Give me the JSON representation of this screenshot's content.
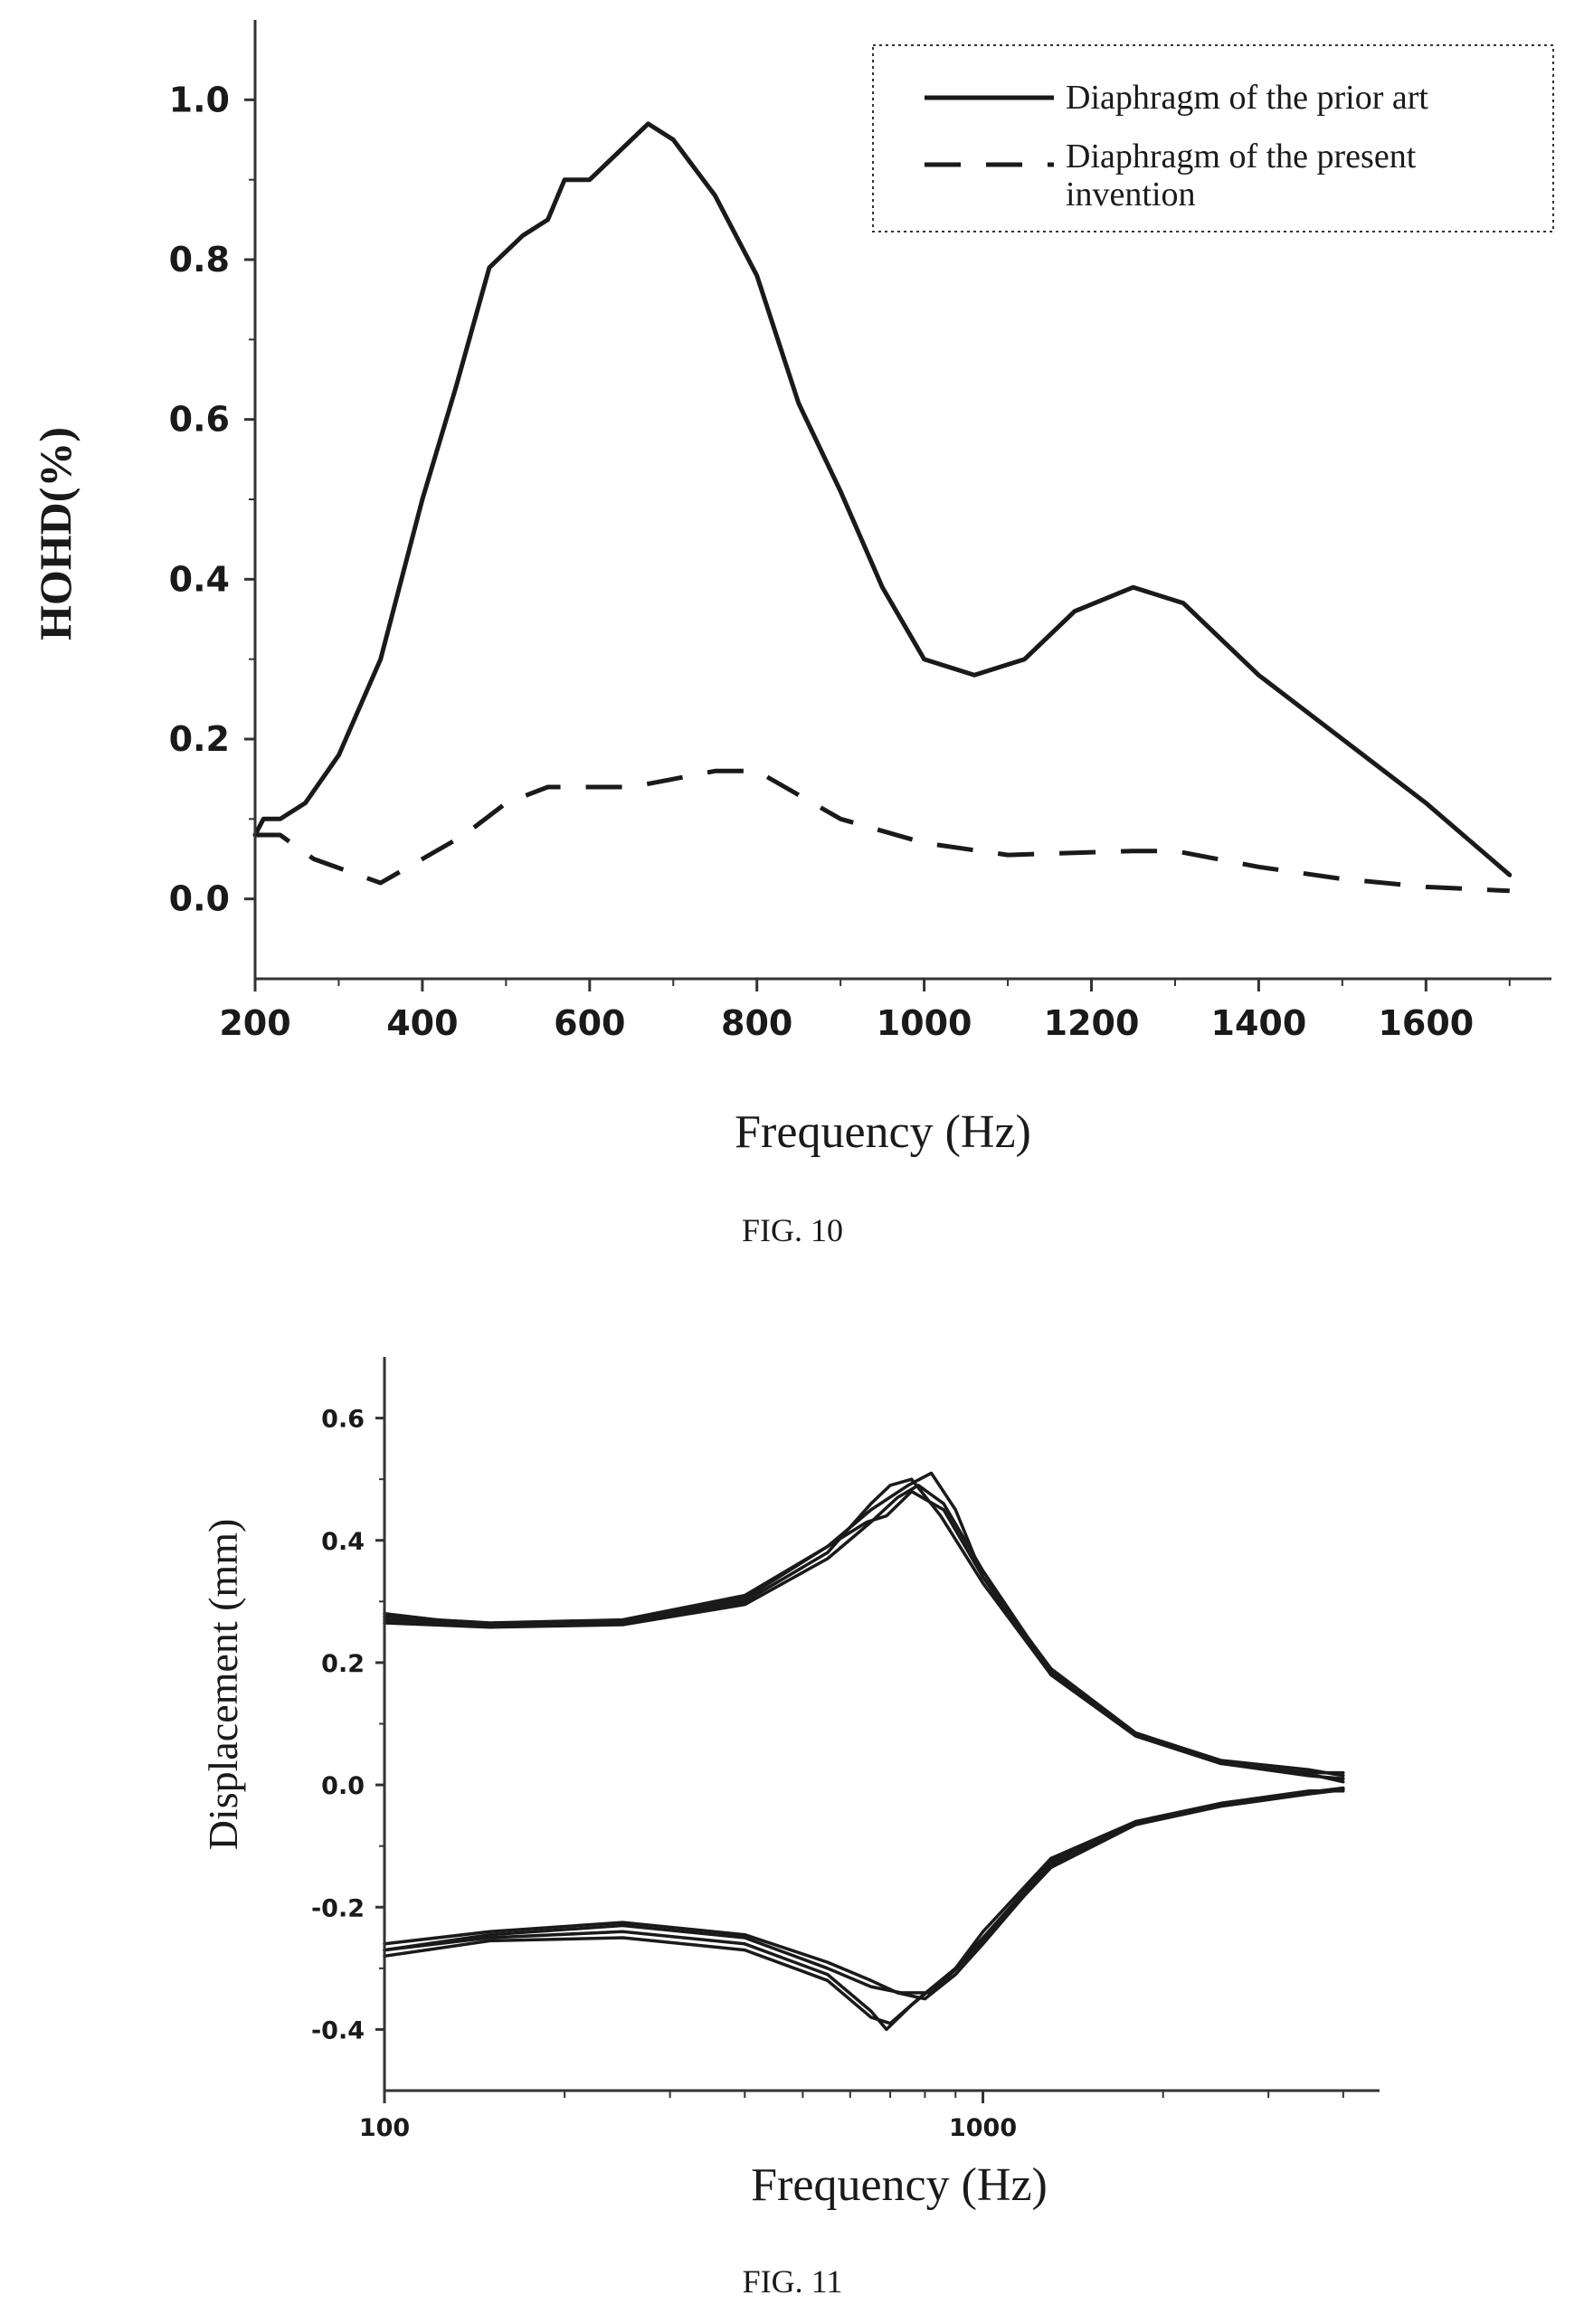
{
  "figures": [
    {
      "caption": "FIG. 10",
      "chart_data": {
        "type": "line",
        "title": "",
        "xlabel": "Frequency (Hz)",
        "ylabel": "HOHD(%)",
        "xlim": [
          200,
          1750
        ],
        "ylim": [
          -0.1,
          1.1
        ],
        "xticks": [
          200,
          400,
          600,
          800,
          1000,
          1200,
          1400,
          1600
        ],
        "yticks": [
          0.0,
          0.2,
          0.4,
          0.6,
          0.8,
          1.0
        ],
        "xtick_labels": [
          "200",
          "400",
          "600",
          "800",
          "1000",
          "1200",
          "1400",
          "1600"
        ],
        "ytick_labels": [
          "0.0",
          "0.2",
          "0.4",
          "0.6",
          "0.8",
          "1.0"
        ],
        "legend_position": "top-right",
        "grid": false,
        "series": [
          {
            "name": "Diaphragm of the prior art",
            "style": "solid",
            "color": "#1a1a1a",
            "points": [
              [
                200,
                0.08
              ],
              [
                210,
                0.1
              ],
              [
                230,
                0.1
              ],
              [
                260,
                0.12
              ],
              [
                300,
                0.18
              ],
              [
                350,
                0.3
              ],
              [
                400,
                0.5
              ],
              [
                440,
                0.64
              ],
              [
                480,
                0.79
              ],
              [
                520,
                0.83
              ],
              [
                550,
                0.85
              ],
              [
                570,
                0.9
              ],
              [
                600,
                0.9
              ],
              [
                640,
                0.94
              ],
              [
                670,
                0.97
              ],
              [
                700,
                0.95
              ],
              [
                750,
                0.88
              ],
              [
                800,
                0.78
              ],
              [
                850,
                0.62
              ],
              [
                900,
                0.51
              ],
              [
                950,
                0.39
              ],
              [
                1000,
                0.3
              ],
              [
                1060,
                0.28
              ],
              [
                1120,
                0.3
              ],
              [
                1180,
                0.36
              ],
              [
                1250,
                0.39
              ],
              [
                1310,
                0.37
              ],
              [
                1400,
                0.28
              ],
              [
                1500,
                0.2
              ],
              [
                1600,
                0.12
              ],
              [
                1700,
                0.03
              ]
            ]
          },
          {
            "name": "Diaphragm of the present invention",
            "style": "dashed",
            "color": "#1a1a1a",
            "points": [
              [
                200,
                0.08
              ],
              [
                230,
                0.08
              ],
              [
                270,
                0.05
              ],
              [
                350,
                0.02
              ],
              [
                400,
                0.05
              ],
              [
                450,
                0.08
              ],
              [
                500,
                0.12
              ],
              [
                550,
                0.14
              ],
              [
                600,
                0.14
              ],
              [
                650,
                0.14
              ],
              [
                700,
                0.15
              ],
              [
                750,
                0.16
              ],
              [
                800,
                0.16
              ],
              [
                850,
                0.13
              ],
              [
                900,
                0.1
              ],
              [
                1000,
                0.07
              ],
              [
                1100,
                0.055
              ],
              [
                1250,
                0.06
              ],
              [
                1300,
                0.06
              ],
              [
                1400,
                0.04
              ],
              [
                1500,
                0.025
              ],
              [
                1600,
                0.015
              ],
              [
                1700,
                0.01
              ]
            ]
          }
        ]
      }
    },
    {
      "caption": "FIG. 11",
      "chart_data": {
        "type": "line",
        "title": "",
        "xlabel": "Frequency (Hz)",
        "ylabel": "Displacement (mm)",
        "x_scale": "log",
        "xlim": [
          100,
          4600
        ],
        "ylim": [
          -0.5,
          0.7
        ],
        "xticks": [
          100,
          1000
        ],
        "yticks": [
          -0.4,
          -0.2,
          0.0,
          0.2,
          0.4,
          0.6
        ],
        "xtick_labels": [
          "100",
          "1000"
        ],
        "ytick_labels": [
          "-0.4",
          "-0.2",
          "0.0",
          "0.2",
          "0.4",
          "0.6"
        ],
        "grid": false,
        "series": [
          {
            "color": "#1a1a1a",
            "points": [
              [
                100,
                0.28
              ],
              [
                150,
                0.26
              ],
              [
                250,
                0.265
              ],
              [
                400,
                0.3
              ],
              [
                550,
                0.38
              ],
              [
                650,
                0.46
              ],
              [
                700,
                0.49
              ],
              [
                760,
                0.5
              ],
              [
                850,
                0.44
              ],
              [
                1000,
                0.33
              ],
              [
                1300,
                0.18
              ],
              [
                1800,
                0.08
              ],
              [
                2500,
                0.035
              ],
              [
                3500,
                0.02
              ],
              [
                4000,
                0.02
              ]
            ]
          },
          {
            "color": "#1a1a1a",
            "points": [
              [
                100,
                0.275
              ],
              [
                150,
                0.265
              ],
              [
                250,
                0.27
              ],
              [
                400,
                0.31
              ],
              [
                550,
                0.39
              ],
              [
                650,
                0.45
              ],
              [
                750,
                0.49
              ],
              [
                820,
                0.51
              ],
              [
                900,
                0.45
              ],
              [
                1000,
                0.34
              ],
              [
                1300,
                0.19
              ],
              [
                1800,
                0.085
              ],
              [
                2500,
                0.04
              ],
              [
                3500,
                0.025
              ],
              [
                4000,
                0.015
              ]
            ]
          },
          {
            "color": "#1a1a1a",
            "points": [
              [
                100,
                0.265
              ],
              [
                150,
                0.258
              ],
              [
                250,
                0.262
              ],
              [
                400,
                0.295
              ],
              [
                550,
                0.37
              ],
              [
                650,
                0.43
              ],
              [
                720,
                0.47
              ],
              [
                780,
                0.49
              ],
              [
                860,
                0.46
              ],
              [
                1000,
                0.35
              ],
              [
                1300,
                0.185
              ],
              [
                1800,
                0.08
              ],
              [
                2500,
                0.035
              ],
              [
                3500,
                0.015
              ],
              [
                4000,
                0.01
              ]
            ]
          },
          {
            "color": "#1a1a1a",
            "points": [
              [
                100,
                0.27
              ],
              [
                150,
                0.262
              ],
              [
                250,
                0.266
              ],
              [
                400,
                0.305
              ],
              [
                550,
                0.39
              ],
              [
                640,
                0.43
              ],
              [
                690,
                0.44
              ],
              [
                760,
                0.48
              ],
              [
                860,
                0.45
              ],
              [
                1000,
                0.34
              ],
              [
                1300,
                0.18
              ],
              [
                1800,
                0.08
              ],
              [
                2500,
                0.035
              ],
              [
                3500,
                0.018
              ],
              [
                4000,
                0.005
              ]
            ]
          },
          {
            "color": "#1a1a1a",
            "points": [
              [
                100,
                -0.28
              ],
              [
                150,
                -0.255
              ],
              [
                250,
                -0.25
              ],
              [
                400,
                -0.27
              ],
              [
                550,
                -0.32
              ],
              [
                650,
                -0.38
              ],
              [
                700,
                -0.39
              ],
              [
                780,
                -0.35
              ],
              [
                900,
                -0.3
              ],
              [
                1000,
                -0.24
              ],
              [
                1300,
                -0.12
              ],
              [
                1800,
                -0.06
              ],
              [
                2500,
                -0.03
              ],
              [
                3500,
                -0.01
              ],
              [
                4000,
                -0.01
              ]
            ]
          },
          {
            "color": "#1a1a1a",
            "points": [
              [
                100,
                -0.27
              ],
              [
                150,
                -0.25
              ],
              [
                250,
                -0.24
              ],
              [
                400,
                -0.26
              ],
              [
                550,
                -0.31
              ],
              [
                650,
                -0.37
              ],
              [
                690,
                -0.4
              ],
              [
                760,
                -0.36
              ],
              [
                900,
                -0.3
              ],
              [
                1000,
                -0.25
              ],
              [
                1300,
                -0.125
              ],
              [
                1800,
                -0.06
              ],
              [
                2500,
                -0.03
              ],
              [
                3500,
                -0.012
              ],
              [
                4000,
                -0.005
              ]
            ]
          },
          {
            "color": "#1a1a1a",
            "points": [
              [
                100,
                -0.26
              ],
              [
                150,
                -0.24
              ],
              [
                250,
                -0.225
              ],
              [
                400,
                -0.245
              ],
              [
                550,
                -0.29
              ],
              [
                650,
                -0.32
              ],
              [
                720,
                -0.34
              ],
              [
                800,
                -0.35
              ],
              [
                900,
                -0.31
              ],
              [
                1000,
                -0.26
              ],
              [
                1300,
                -0.13
              ],
              [
                1800,
                -0.065
              ],
              [
                2500,
                -0.035
              ],
              [
                3500,
                -0.015
              ],
              [
                4000,
                -0.008
              ]
            ]
          },
          {
            "color": "#1a1a1a",
            "points": [
              [
                100,
                -0.27
              ],
              [
                150,
                -0.245
              ],
              [
                250,
                -0.23
              ],
              [
                400,
                -0.25
              ],
              [
                550,
                -0.3
              ],
              [
                650,
                -0.33
              ],
              [
                730,
                -0.34
              ],
              [
                820,
                -0.34
              ],
              [
                950,
                -0.28
              ],
              [
                1100,
                -0.21
              ],
              [
                1300,
                -0.135
              ],
              [
                1800,
                -0.065
              ],
              [
                2500,
                -0.03
              ],
              [
                3500,
                -0.012
              ],
              [
                4000,
                -0.006
              ]
            ]
          }
        ]
      }
    }
  ]
}
